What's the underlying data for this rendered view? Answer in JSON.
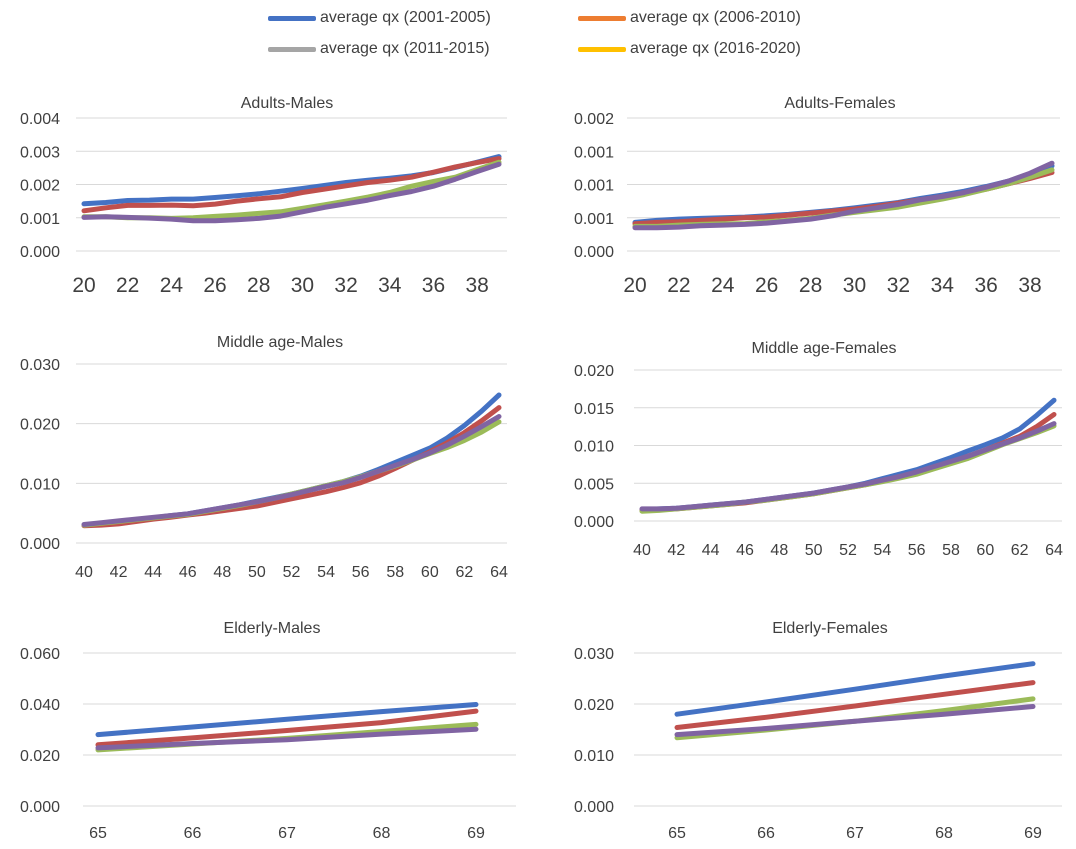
{
  "legend": {
    "items": [
      {
        "label": "average qx (2001-2005)",
        "color": "#4472C4"
      },
      {
        "label": "average qx (2006-2010)",
        "color": "#ED7D31"
      },
      {
        "label": "average qx (2011-2015)",
        "color": "#A5A5A5"
      },
      {
        "label": "average qx (2016-2020)",
        "color": "#FFC000"
      }
    ]
  },
  "chart_data": [
    {
      "type": "line",
      "title": "Adults-Males",
      "x": [
        20,
        21,
        22,
        23,
        24,
        25,
        26,
        27,
        28,
        29,
        30,
        31,
        32,
        33,
        34,
        35,
        36,
        37,
        38,
        39
      ],
      "xticks": [
        20,
        22,
        24,
        26,
        28,
        30,
        32,
        34,
        36,
        38
      ],
      "yticks": [
        "0.000",
        "0.001",
        "0.002",
        "0.003",
        "0.004"
      ],
      "ylim": [
        0,
        0.004
      ],
      "series": [
        {
          "color": "#4472C4",
          "values": [
            0.00142,
            0.00146,
            0.00152,
            0.00153,
            0.00156,
            0.00156,
            0.00161,
            0.00166,
            0.00172,
            0.0018,
            0.00188,
            0.00197,
            0.00206,
            0.00213,
            0.00219,
            0.00226,
            0.00236,
            0.00251,
            0.00267,
            0.00284
          ]
        },
        {
          "color": "#C0504D",
          "values": [
            0.00121,
            0.0013,
            0.00137,
            0.00137,
            0.00138,
            0.00136,
            0.00141,
            0.0015,
            0.00157,
            0.00163,
            0.00176,
            0.00186,
            0.00196,
            0.00206,
            0.00213,
            0.00222,
            0.00237,
            0.00253,
            0.00266,
            0.00278
          ]
        },
        {
          "color": "#9BBB59",
          "values": [
            0.00103,
            0.00103,
            0.001,
            0.001,
            0.00098,
            0.001,
            0.00104,
            0.00108,
            0.00113,
            0.00118,
            0.00128,
            0.00139,
            0.0015,
            0.00162,
            0.00176,
            0.00195,
            0.00209,
            0.00222,
            0.00245,
            0.00267
          ]
        },
        {
          "color": "#8064A2",
          "values": [
            0.00101,
            0.00103,
            0.00101,
            0.00099,
            0.00096,
            0.00091,
            0.00091,
            0.00094,
            0.00098,
            0.00105,
            0.00118,
            0.00131,
            0.00142,
            0.00153,
            0.00167,
            0.00179,
            0.00195,
            0.00216,
            0.00239,
            0.00261
          ]
        }
      ]
    },
    {
      "type": "line",
      "title": "Adults-Females",
      "x": [
        20,
        21,
        22,
        23,
        24,
        25,
        26,
        27,
        28,
        29,
        30,
        31,
        32,
        33,
        34,
        35,
        36,
        37,
        38,
        39
      ],
      "xticks": [
        20,
        22,
        24,
        26,
        28,
        30,
        32,
        34,
        36,
        38
      ],
      "yticks": [
        "0.000",
        "0.001",
        "0.001",
        "0.001",
        "0.002"
      ],
      "ylim": [
        0,
        0.002
      ],
      "series": [
        {
          "color": "#4472C4",
          "values": [
            0.00043,
            0.00046,
            0.00048,
            0.00049,
            0.0005,
            0.00051,
            0.00053,
            0.00055,
            0.00058,
            0.00061,
            0.00065,
            0.00069,
            0.00073,
            0.00079,
            0.00084,
            0.0009,
            0.00097,
            0.00105,
            0.00116,
            0.00128
          ]
        },
        {
          "color": "#C0504D",
          "values": [
            0.00041,
            0.00043,
            0.00044,
            0.00046,
            0.00048,
            0.0005,
            0.00051,
            0.00054,
            0.00057,
            0.0006,
            0.00063,
            0.00067,
            0.00072,
            0.00077,
            0.00082,
            0.00087,
            0.00093,
            0.00101,
            0.00109,
            0.00118
          ]
        },
        {
          "color": "#9BBB59",
          "values": [
            0.00037,
            0.00037,
            0.00039,
            0.0004,
            0.00041,
            0.00041,
            0.00044,
            0.00046,
            0.00049,
            0.00054,
            0.00058,
            0.00062,
            0.00066,
            0.00072,
            0.00078,
            0.00085,
            0.00093,
            0.00101,
            0.00111,
            0.00122
          ]
        },
        {
          "color": "#8064A2",
          "values": [
            0.00035,
            0.00035,
            0.00036,
            0.00038,
            0.00039,
            0.0004,
            0.00042,
            0.00045,
            0.00048,
            0.00053,
            0.0006,
            0.00065,
            0.0007,
            0.00077,
            0.00082,
            0.00088,
            0.00096,
            0.00105,
            0.00117,
            0.00132
          ]
        }
      ]
    },
    {
      "type": "line",
      "title": "Middle age-Males",
      "x": [
        40,
        41,
        42,
        43,
        44,
        45,
        46,
        47,
        48,
        49,
        50,
        51,
        52,
        53,
        54,
        55,
        56,
        57,
        58,
        59,
        60,
        61,
        62,
        63,
        64
      ],
      "xticks": [
        40,
        42,
        44,
        46,
        48,
        50,
        52,
        54,
        56,
        58,
        60,
        62,
        64
      ],
      "yticks": [
        "0.000",
        "0.010",
        "0.020",
        "0.030"
      ],
      "ylim": [
        0,
        0.03
      ],
      "series": [
        {
          "color": "#4472C4",
          "values": [
            0.003,
            0.0033,
            0.0036,
            0.0039,
            0.0042,
            0.0046,
            0.0049,
            0.0054,
            0.0059,
            0.0064,
            0.007,
            0.0076,
            0.0082,
            0.0089,
            0.0096,
            0.0103,
            0.0112,
            0.0123,
            0.0135,
            0.0147,
            0.0159,
            0.0176,
            0.0197,
            0.0221,
            0.0248
          ]
        },
        {
          "color": "#C0504D",
          "values": [
            0.0029,
            0.003,
            0.0032,
            0.0036,
            0.004,
            0.0043,
            0.0047,
            0.005,
            0.0054,
            0.0058,
            0.0062,
            0.0068,
            0.0074,
            0.008,
            0.0086,
            0.0093,
            0.0101,
            0.0112,
            0.0125,
            0.0139,
            0.0153,
            0.0168,
            0.0185,
            0.0205,
            0.0227
          ]
        },
        {
          "color": "#9BBB59",
          "values": [
            0.003,
            0.0033,
            0.0036,
            0.0039,
            0.0042,
            0.0045,
            0.0048,
            0.0053,
            0.0058,
            0.0063,
            0.0069,
            0.0075,
            0.0082,
            0.0089,
            0.0096,
            0.0103,
            0.0111,
            0.012,
            0.0129,
            0.0139,
            0.015,
            0.016,
            0.0172,
            0.0186,
            0.0203
          ]
        },
        {
          "color": "#8064A2",
          "values": [
            0.0031,
            0.0034,
            0.0037,
            0.004,
            0.0043,
            0.0046,
            0.0049,
            0.0054,
            0.0059,
            0.0064,
            0.0069,
            0.0075,
            0.0081,
            0.0088,
            0.0095,
            0.0101,
            0.011,
            0.012,
            0.013,
            0.014,
            0.0151,
            0.0164,
            0.0179,
            0.0195,
            0.0212
          ]
        }
      ]
    },
    {
      "type": "line",
      "title": "Middle age-Females",
      "x": [
        40,
        41,
        42,
        43,
        44,
        45,
        46,
        47,
        48,
        49,
        50,
        51,
        52,
        53,
        54,
        55,
        56,
        57,
        58,
        59,
        60,
        61,
        62,
        63,
        64
      ],
      "xticks": [
        40,
        42,
        44,
        46,
        48,
        50,
        52,
        54,
        56,
        58,
        60,
        62,
        64
      ],
      "yticks": [
        "0.000",
        "0.005",
        "0.010",
        "0.015",
        "0.020"
      ],
      "ylim": [
        0,
        0.02
      ],
      "series": [
        {
          "color": "#4472C4",
          "values": [
            0.0015,
            0.0016,
            0.0017,
            0.0019,
            0.0021,
            0.0023,
            0.0025,
            0.0028,
            0.0031,
            0.0034,
            0.0037,
            0.0041,
            0.0045,
            0.005,
            0.0056,
            0.0062,
            0.0068,
            0.0076,
            0.0084,
            0.0093,
            0.0101,
            0.011,
            0.0122,
            0.014,
            0.016
          ]
        },
        {
          "color": "#C0504D",
          "values": [
            0.0014,
            0.0015,
            0.0016,
            0.0018,
            0.002,
            0.0022,
            0.0024,
            0.0027,
            0.003,
            0.0033,
            0.0036,
            0.004,
            0.0044,
            0.0048,
            0.0053,
            0.0058,
            0.0064,
            0.0071,
            0.0078,
            0.0086,
            0.0094,
            0.0103,
            0.0112,
            0.0125,
            0.0141
          ]
        },
        {
          "color": "#9BBB59",
          "values": [
            0.0013,
            0.0014,
            0.0016,
            0.0018,
            0.002,
            0.0022,
            0.0025,
            0.0027,
            0.003,
            0.0033,
            0.0036,
            0.004,
            0.0044,
            0.0048,
            0.0052,
            0.0057,
            0.0062,
            0.0069,
            0.0076,
            0.0083,
            0.0092,
            0.0101,
            0.0109,
            0.0117,
            0.0126
          ]
        },
        {
          "color": "#8064A2",
          "values": [
            0.0016,
            0.0016,
            0.0017,
            0.0019,
            0.0021,
            0.0023,
            0.0025,
            0.0028,
            0.0031,
            0.0034,
            0.0037,
            0.0041,
            0.0045,
            0.0049,
            0.0054,
            0.0059,
            0.0065,
            0.0072,
            0.0079,
            0.0086,
            0.0094,
            0.0102,
            0.011,
            0.0119,
            0.0129
          ]
        }
      ]
    },
    {
      "type": "line",
      "title": "Elderly-Males",
      "x": [
        65,
        66,
        67,
        68,
        69
      ],
      "xticks": [
        65,
        66,
        67,
        68,
        69
      ],
      "yticks": [
        "0.000",
        "0.020",
        "0.040",
        "0.060"
      ],
      "ylim": [
        0,
        0.06
      ],
      "series": [
        {
          "color": "#4472C4",
          "values": [
            0.028,
            0.031,
            0.034,
            0.037,
            0.0398
          ]
        },
        {
          "color": "#C0504D",
          "values": [
            0.024,
            0.0267,
            0.0296,
            0.0327,
            0.0372
          ]
        },
        {
          "color": "#9BBB59",
          "values": [
            0.022,
            0.0243,
            0.0265,
            0.0292,
            0.032
          ]
        },
        {
          "color": "#8064A2",
          "values": [
            0.0228,
            0.0245,
            0.026,
            0.0282,
            0.0301
          ]
        }
      ]
    },
    {
      "type": "line",
      "title": "Elderly-Females",
      "x": [
        65,
        66,
        67,
        68,
        69
      ],
      "xticks": [
        65,
        66,
        67,
        68,
        69
      ],
      "yticks": [
        "0.000",
        "0.010",
        "0.020",
        "0.030"
      ],
      "ylim": [
        0,
        0.03
      ],
      "series": [
        {
          "color": "#4472C4",
          "values": [
            0.018,
            0.0204,
            0.0229,
            0.0255,
            0.0279
          ]
        },
        {
          "color": "#C0504D",
          "values": [
            0.0154,
            0.0174,
            0.0196,
            0.0219,
            0.0242
          ]
        },
        {
          "color": "#9BBB59",
          "values": [
            0.0134,
            0.0149,
            0.0166,
            0.0187,
            0.021
          ]
        },
        {
          "color": "#8064A2",
          "values": [
            0.014,
            0.0152,
            0.0166,
            0.018,
            0.0195
          ]
        }
      ]
    }
  ]
}
